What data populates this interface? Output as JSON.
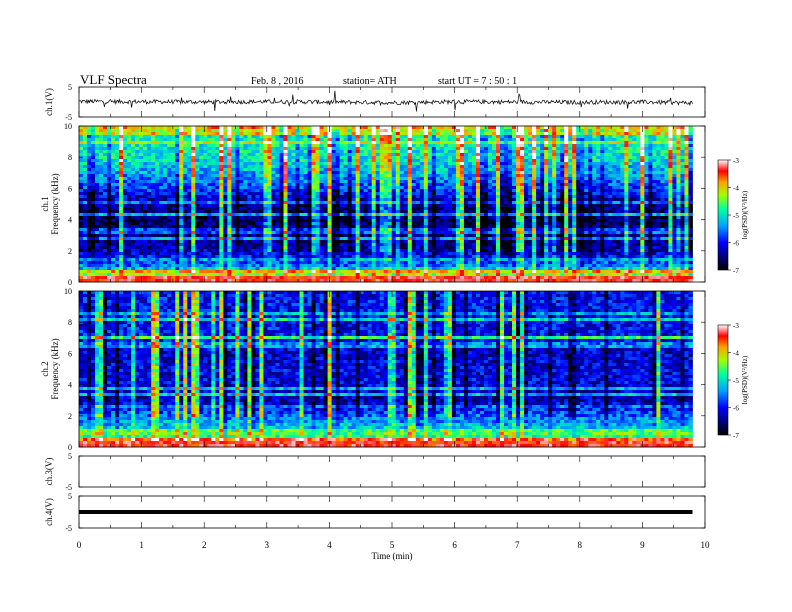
{
  "header": {
    "title": "VLF Spectra",
    "date": "Feb. 8 , 2016",
    "station": "station= ATH",
    "start": "start UT = 7 : 50 : 1"
  },
  "chart_data": [
    {
      "type": "line",
      "panel": "ch1-waveform",
      "ylabel": "ch.1(V)",
      "ylim": [
        -5,
        5
      ],
      "yticks": [
        "5",
        "-5"
      ],
      "description_series": "time-domain voltage, noisy trace near 0 V with spikes",
      "x": [
        0,
        1,
        2,
        3,
        4,
        5,
        6,
        7,
        8,
        9,
        9.8
      ],
      "y": [
        0.2,
        0.1,
        0.0,
        0.1,
        0.0,
        -0.2,
        0.1,
        0.0,
        -0.1,
        0.0,
        -0.3
      ]
    },
    {
      "type": "heatmap",
      "panel": "ch1-spectrogram",
      "ylabel": "ch.1\nFrequency (kHz)",
      "ylim": [
        0,
        10
      ],
      "yticks": [
        "0",
        "2",
        "4",
        "6",
        "8",
        "10"
      ],
      "xlim": [
        0,
        9.8
      ],
      "colorbar": {
        "label": "log(PSD)(V²/Hz)",
        "range": [
          -7,
          -3
        ],
        "ticks": [
          "-3",
          "-4",
          "-5",
          "-6",
          "-7"
        ]
      },
      "band_profile_khz": [
        0,
        0.5,
        1,
        2,
        3,
        4,
        5,
        6,
        7,
        8,
        9,
        10
      ],
      "band_profile_logpsd": [
        -3.2,
        -4.4,
        -5.5,
        -6.3,
        -6.5,
        -6.6,
        -6.4,
        -5.8,
        -5.3,
        -5.0,
        -4.9,
        -4.9
      ]
    },
    {
      "type": "heatmap",
      "panel": "ch2-spectrogram",
      "ylabel": "ch.2\nFrequency (kHz)",
      "ylim": [
        0,
        10
      ],
      "yticks": [
        "0",
        "2",
        "4",
        "6",
        "8",
        "10"
      ],
      "xlim": [
        0,
        9.8
      ],
      "colorbar": {
        "label": "log(PSD)(V²/Hz)",
        "range": [
          -7,
          -3
        ],
        "ticks": [
          "-3",
          "-4",
          "-5",
          "-6",
          "-7"
        ]
      },
      "band_profile_khz": [
        0,
        0.5,
        1,
        2,
        3,
        4,
        5,
        6,
        7,
        8,
        9,
        10
      ],
      "band_profile_logpsd": [
        -3.4,
        -4.6,
        -5.0,
        -5.6,
        -6.3,
        -6.1,
        -6.1,
        -6.2,
        -6.0,
        -6.0,
        -6.0,
        -6.0
      ]
    },
    {
      "type": "line",
      "panel": "ch3-waveform",
      "ylabel": "ch.3(V)",
      "ylim": [
        -5,
        5
      ],
      "yticks": [
        "5",
        "-5"
      ],
      "x": [],
      "y": []
    },
    {
      "type": "line",
      "panel": "ch4-waveform",
      "ylabel": "ch.4(V)",
      "ylim": [
        -5,
        5
      ],
      "yticks": [
        "5",
        "-5"
      ],
      "x": [
        0,
        9.8
      ],
      "y": [
        0,
        0
      ]
    }
  ],
  "xaxis": {
    "label": "Time (min)",
    "ticks": [
      "0",
      "1",
      "2",
      "3",
      "4",
      "5",
      "6",
      "7",
      "8",
      "9",
      "10"
    ],
    "range": [
      0,
      10
    ]
  },
  "colors": {
    "colormap": [
      "#000000",
      "#00007a",
      "#0000ff",
      "#00a0ff",
      "#00ffa0",
      "#a0ff00",
      "#ffa000",
      "#ff0000",
      "#ffffff"
    ]
  }
}
